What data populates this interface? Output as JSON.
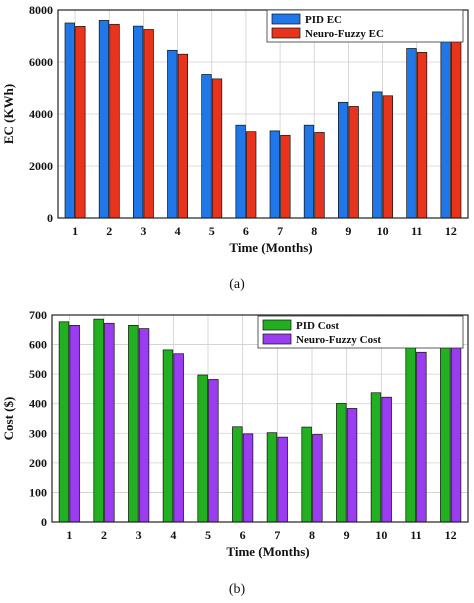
{
  "chart_data": [
    {
      "type": "bar",
      "caption": "(a)",
      "categories": [
        "1",
        "2",
        "3",
        "4",
        "5",
        "6",
        "7",
        "8",
        "9",
        "10",
        "11",
        "12"
      ],
      "series": [
        {
          "name": "PID EC",
          "color": "#1f77e8",
          "values": [
            7500,
            7600,
            7380,
            6450,
            5520,
            3570,
            3350,
            3570,
            4450,
            4850,
            6520,
            7380
          ]
        },
        {
          "name": "Neuro-Fuzzy EC",
          "color": "#e8341c",
          "values": [
            7370,
            7450,
            7250,
            6300,
            5350,
            3320,
            3180,
            3290,
            4290,
            4700,
            6370,
            7220
          ]
        }
      ],
      "xlabel": "Time (Months)",
      "ylabel": "EC (KWh)",
      "ylim": [
        0,
        8000
      ],
      "yticks": [
        "0",
        "2000",
        "4000",
        "6000",
        "8000"
      ],
      "grid": true,
      "legend_position": "top-right"
    },
    {
      "type": "bar",
      "caption": "(b)",
      "categories": [
        "1",
        "2",
        "3",
        "4",
        "5",
        "6",
        "7",
        "8",
        "9",
        "10",
        "11",
        "12"
      ],
      "series": [
        {
          "name": "PID Cost",
          "color": "#22b022",
          "values": [
            677,
            686,
            665,
            582,
            497,
            322,
            302,
            321,
            401,
            437,
            590,
            665
          ]
        },
        {
          "name": "Neuro-Fuzzy Cost",
          "color": "#9a3cf0",
          "values": [
            665,
            672,
            654,
            569,
            482,
            298,
            287,
            296,
            384,
            422,
            574,
            650
          ]
        }
      ],
      "xlabel": "Time (Months)",
      "ylabel": "Cost ($)",
      "ylim": [
        0,
        700
      ],
      "yticks": [
        "0",
        "100",
        "200",
        "300",
        "400",
        "500",
        "600",
        "700"
      ],
      "grid": true,
      "legend_position": "top-right"
    }
  ]
}
